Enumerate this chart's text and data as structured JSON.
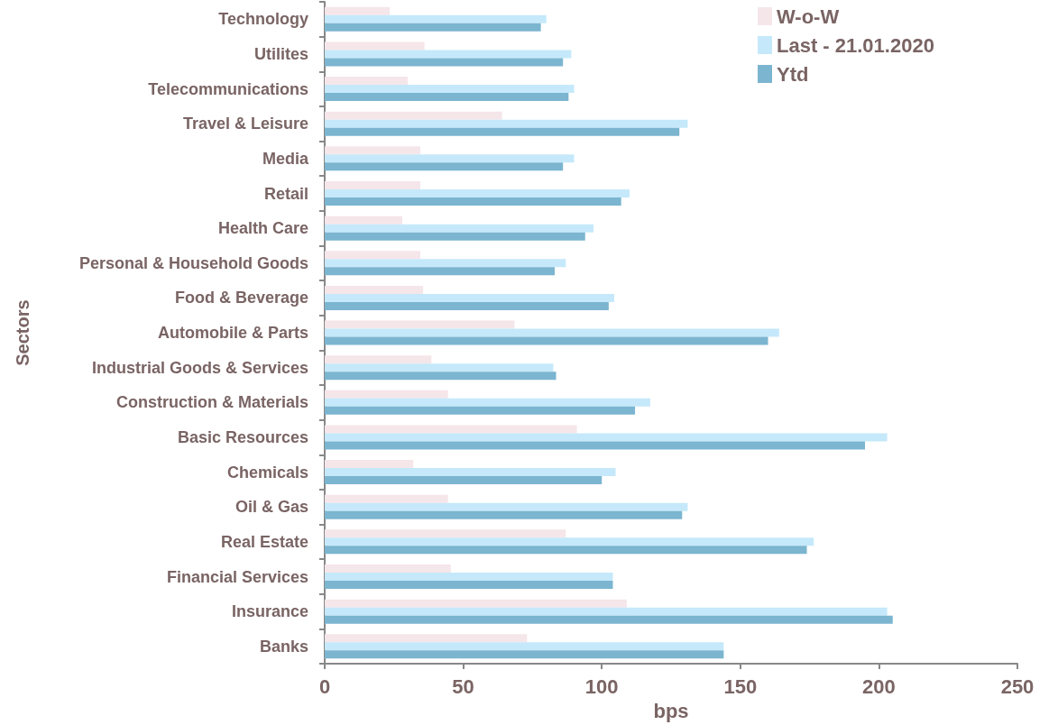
{
  "chart_data": {
    "type": "bar",
    "orientation": "horizontal",
    "xlabel": "bps",
    "ylabel": "Sectors",
    "categories": [
      "Technology",
      "Utilites",
      "Telecommunications",
      "Travel & Leisure",
      "Media",
      "Retail",
      "Health Care",
      "Personal & Household Goods",
      "Food & Beverage",
      "Automobile & Parts",
      "Industrial Goods & Services",
      "Construction & Materials",
      "Basic Resources",
      "Chemicals",
      "Oil & Gas",
      "Real Estate",
      "Financial Services",
      "Insurance",
      "Banks"
    ],
    "series": [
      {
        "name": "W-o-W",
        "color": "#f5e6ea",
        "values": [
          23.5,
          36,
          30,
          64,
          34.5,
          34.5,
          28,
          34.5,
          35.5,
          68.5,
          38.5,
          44.5,
          91,
          32,
          44.5,
          87,
          45.5,
          109,
          73
        ]
      },
      {
        "name": "Last - 21.01.2020",
        "color": "#c5e9fa",
        "values": [
          80,
          89,
          90,
          131,
          90,
          110,
          97,
          87,
          104.5,
          164,
          82.5,
          117.5,
          203,
          105,
          131,
          176.5,
          104,
          203,
          144
        ]
      },
      {
        "name": "Ytd",
        "color": "#7bb5d0",
        "values": [
          78,
          86,
          88,
          128,
          86,
          107,
          94,
          83,
          102.5,
          160,
          83.5,
          112,
          195,
          100,
          129,
          174,
          104,
          205,
          144
        ]
      }
    ],
    "xlim": [
      0,
      250
    ],
    "xticks": [
      0,
      50,
      100,
      150,
      200,
      250
    ],
    "grid": false,
    "legend": "top right"
  }
}
